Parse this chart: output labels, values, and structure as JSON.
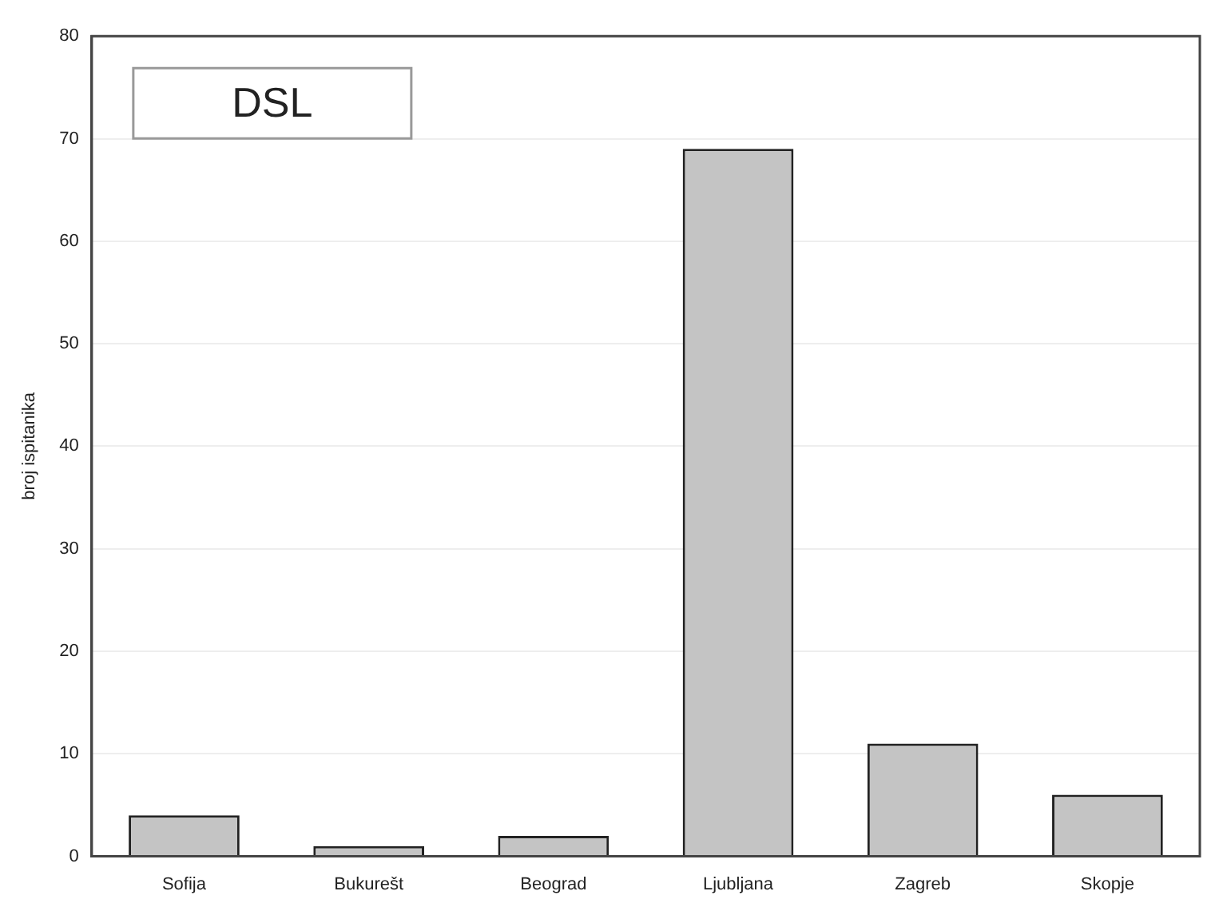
{
  "chart_data": {
    "type": "bar",
    "title": "DSL",
    "ylabel": "broj ispitanika",
    "categories": [
      "Sofija",
      "Bukurešt",
      "Beograd",
      "Ljubljana",
      "Zagreb",
      "Skopje"
    ],
    "values": [
      4,
      1,
      2,
      69,
      11,
      6
    ],
    "color": "#c4c4c4",
    "ylim": [
      0,
      80
    ],
    "yticks": [
      0,
      10,
      20,
      30,
      40,
      50,
      60,
      70,
      80
    ],
    "grid": "y",
    "legend": false
  }
}
